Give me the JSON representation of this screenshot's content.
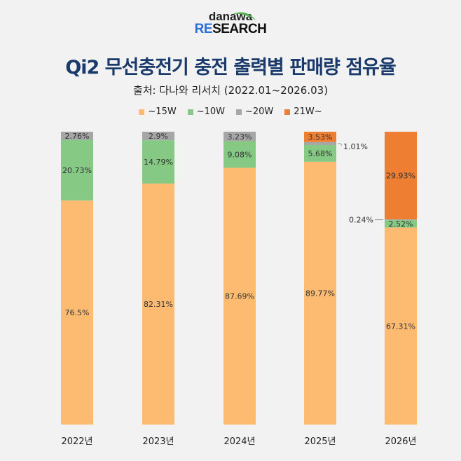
{
  "logo": {
    "top": "danawa",
    "bottom_blue": "RE",
    "bottom_dark": "SEARCH"
  },
  "title": "Qi2 무선충전기 충전 출력별 판매량 점유율",
  "subtitle": "출처: 다나와 리서치 (2022.01~2026.03)",
  "colors": {
    "~15W": "#FDBB72",
    "~10W": "#85C985",
    "~20W": "#A6A6A6",
    "21W~": "#EE7E32"
  },
  "chart_data": {
    "type": "bar",
    "stacked": true,
    "title": "Qi2 무선충전기 충전 출력별 판매량 점유율",
    "categories": [
      "2022년",
      "2023년",
      "2024년",
      "2025년",
      "2026년"
    ],
    "ylim": [
      0,
      100
    ],
    "legend_position": "top",
    "series": [
      {
        "name": "~15W",
        "values": [
          76.5,
          82.31,
          87.69,
          89.77,
          67.31
        ],
        "labels": [
          "76.5%",
          "82.31%",
          "87.69%",
          "89.77%",
          "67.31%"
        ]
      },
      {
        "name": "~10W",
        "values": [
          20.73,
          14.79,
          9.08,
          5.68,
          2.52
        ],
        "labels": [
          "20.73%",
          "14.79%",
          "9.08%",
          "5.68%",
          "2.52%"
        ]
      },
      {
        "name": "~20W",
        "values": [
          2.76,
          2.9,
          3.23,
          1.01,
          0.24
        ],
        "labels": [
          "2.76%",
          "2.9%",
          "3.23%",
          "1.01%",
          "0.24%"
        ]
      },
      {
        "name": "21W~",
        "values": [
          0,
          0,
          0,
          3.53,
          29.93
        ],
        "labels": [
          "",
          "",
          "",
          "3.53%",
          "29.93%"
        ]
      }
    ]
  }
}
